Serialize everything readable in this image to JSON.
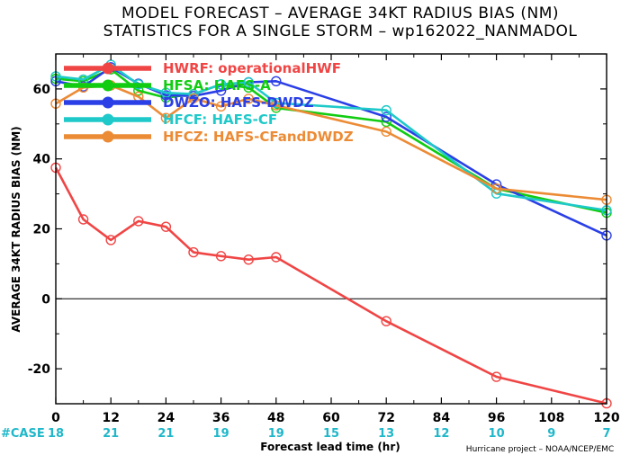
{
  "title": {
    "line1": "MODEL FORECAST – AVERAGE 34KT RADIUS BIAS (NM)",
    "line2": "STATISTICS FOR A SINGLE STORM – wp162022_NANMADOL"
  },
  "credit": "Hurricane project – NOAA/NCEP/EMC",
  "case_label": "#CASE",
  "chart_data": {
    "type": "line",
    "xlabel": "Forecast lead time (hr)",
    "ylabel": "AVERAGE 34KT RADIUS BIAS (NM)",
    "xlim": [
      0,
      120
    ],
    "ylim": [
      -30,
      70
    ],
    "xticks": [
      0,
      12,
      24,
      36,
      48,
      60,
      72,
      84,
      96,
      108,
      120
    ],
    "yticks": [
      -20,
      0,
      20,
      40,
      60
    ],
    "zero_line": true,
    "grid": false,
    "legend_position": "top-left",
    "case_leads": [
      0,
      12,
      24,
      36,
      48,
      60,
      72,
      84,
      96,
      108,
      120
    ],
    "case_counts": [
      "18",
      "21",
      "21",
      "19",
      "19",
      "15",
      "13",
      "12",
      "10",
      "9",
      "7"
    ],
    "series": [
      {
        "name": "HWRF: operationalHWF",
        "color": "#f04545",
        "x": [
          0,
          6,
          12,
          18,
          24,
          30,
          36,
          42,
          48,
          72,
          96,
          120
        ],
        "y": [
          37.5,
          22.7,
          16.8,
          22.2,
          20.6,
          13.3,
          12.2,
          11.2,
          11.9,
          -6.4,
          -22.3,
          -29.9
        ]
      },
      {
        "name": "HFSA: HAFS-A",
        "color": "#11cc11",
        "x": [
          0,
          6,
          12,
          18,
          24,
          30,
          36,
          42,
          48,
          72,
          96,
          120
        ],
        "y": [
          62.9,
          62.2,
          65.6,
          59.5,
          57.5,
          58.5,
          61.3,
          60.4,
          54.6,
          50.6,
          31.5,
          24.6
        ]
      },
      {
        "name": "DWZO: HAFS-DWDZ",
        "color": "#2a3fe6",
        "x": [
          0,
          6,
          12,
          18,
          24,
          30,
          36,
          42,
          48,
          72,
          96,
          120
        ],
        "y": [
          62.2,
          60.7,
          66.2,
          61.5,
          58.2,
          58.0,
          59.5,
          61.9,
          62.2,
          52.0,
          32.7,
          18.1
        ]
      },
      {
        "name": "HFCF: HAFS-CF",
        "color": "#1fc9c9",
        "x": [
          0,
          6,
          12,
          18,
          24,
          30,
          36,
          42,
          48,
          72,
          96,
          120
        ],
        "y": [
          63.6,
          62.7,
          66.9,
          61.3,
          58.9,
          58.5,
          61.3,
          61.9,
          56.0,
          53.9,
          30.1,
          25.3
        ]
      },
      {
        "name": "HFCZ: HAFS-CFandDWDZ",
        "color": "#ec8b35",
        "x": [
          0,
          6,
          12,
          18,
          24,
          30,
          36,
          42,
          48,
          72,
          96,
          120
        ],
        "y": [
          55.8,
          60.4,
          61.0,
          57.8,
          51.7,
          57.3,
          55.0,
          57.2,
          55.3,
          47.8,
          31.5,
          28.3
        ]
      }
    ]
  }
}
